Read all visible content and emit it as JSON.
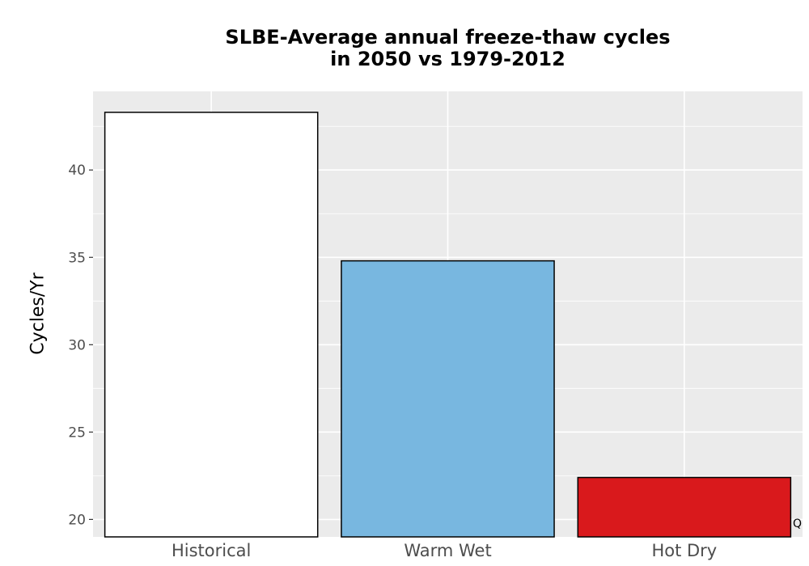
{
  "chart_data": {
    "type": "bar",
    "title_line1": "SLBE-Average annual freeze-thaw cycles",
    "title_line2": "in 2050 vs 1979-2012",
    "xlabel": "",
    "ylabel": "Cycles/Yr",
    "categories": [
      "Historical",
      "Warm Wet",
      "Hot Dry"
    ],
    "values": [
      43.3,
      34.8,
      22.4
    ],
    "colors": [
      "#ffffff",
      "#78b7e0",
      "#d9191c"
    ],
    "ylim": [
      19,
      44.5
    ],
    "yticks": [
      20,
      25,
      30,
      35,
      40
    ],
    "grid": true,
    "panel_background": "#ebebeb"
  },
  "corner_note": "Q"
}
